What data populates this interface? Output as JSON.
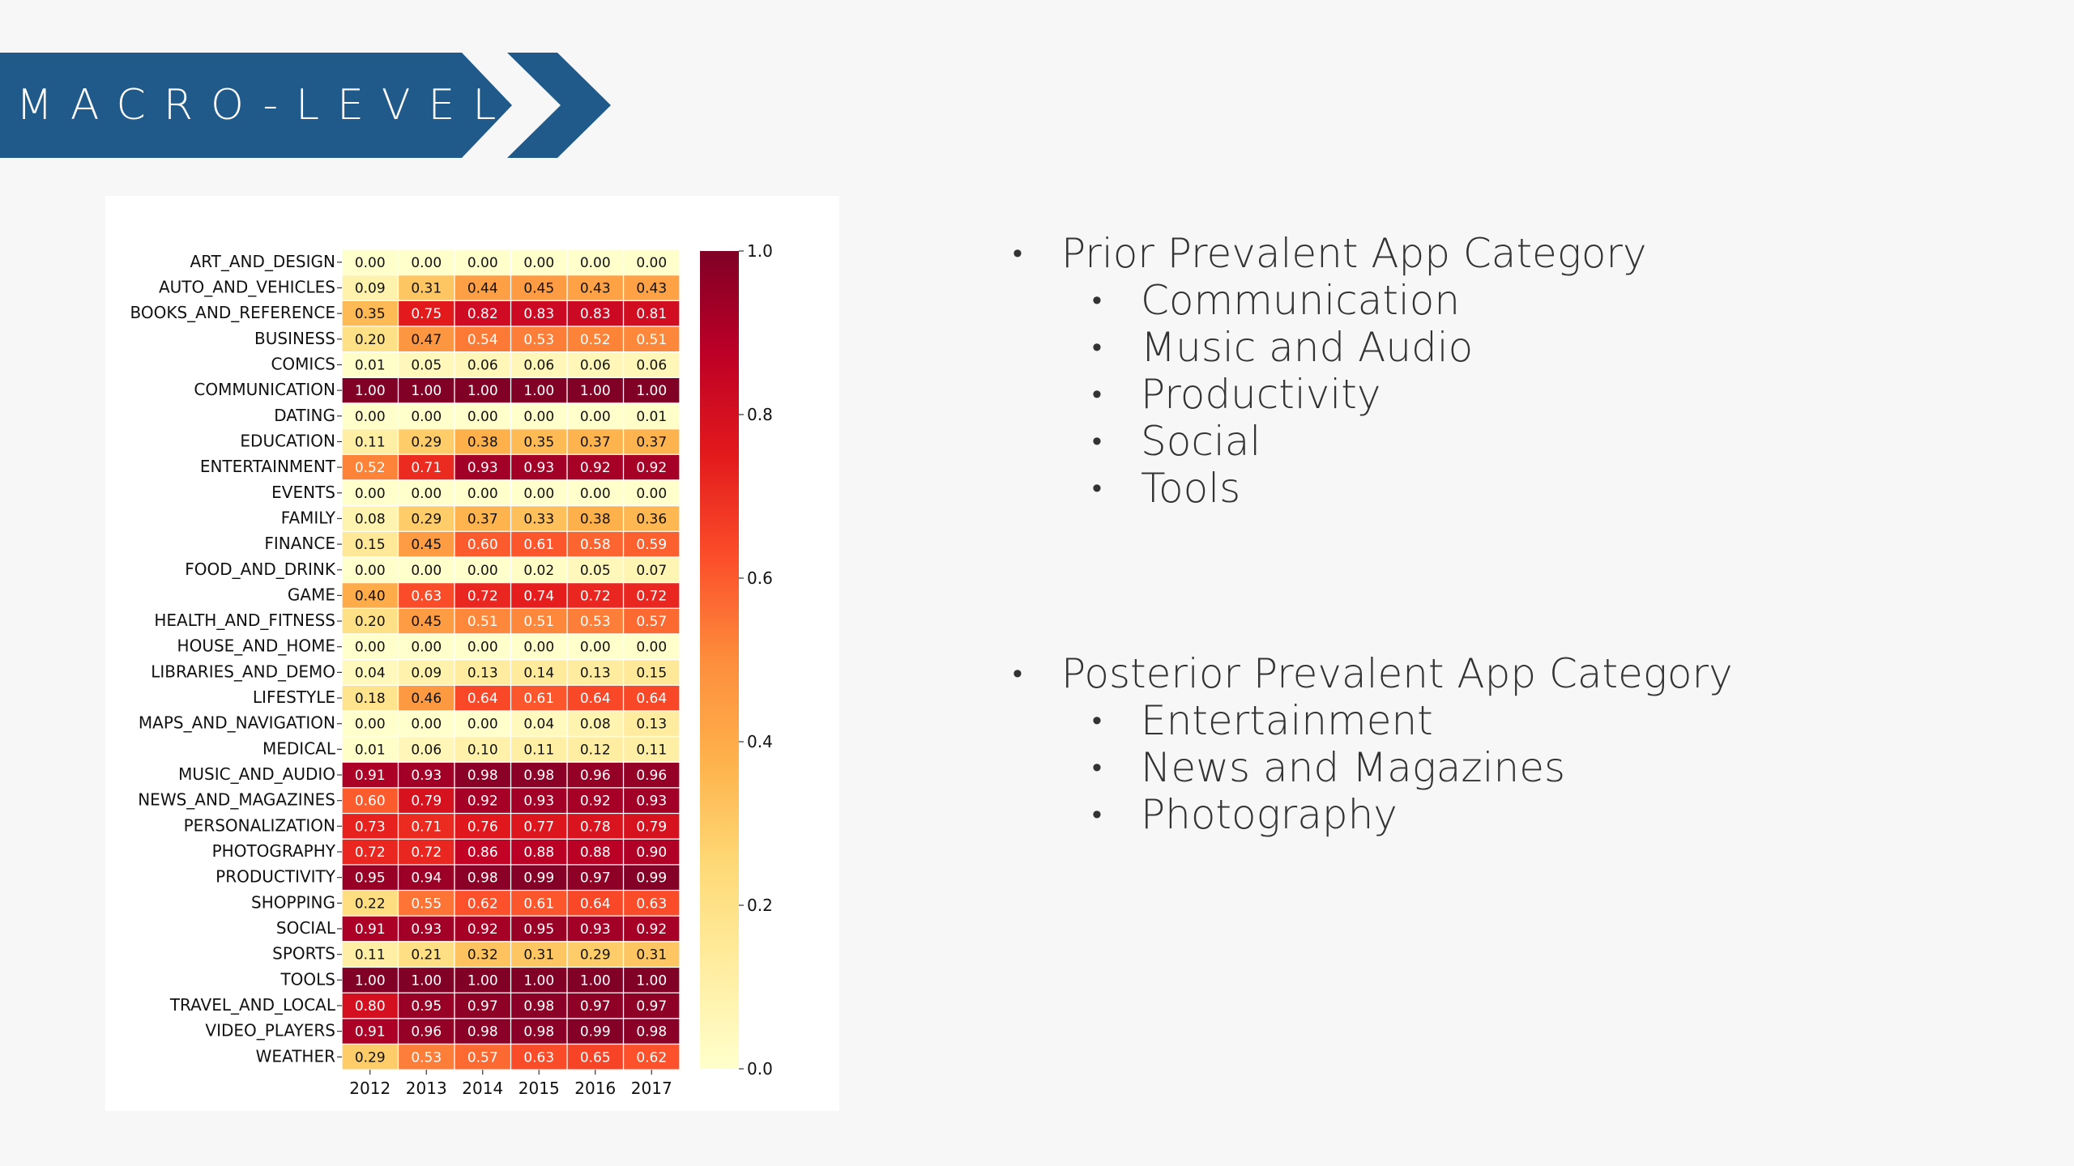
{
  "slide": {
    "title": "MACRO-LEVEL",
    "banner_color": "#1f5a8a"
  },
  "prior": {
    "heading": "Prior Prevalent App Category",
    "items": [
      "Communication",
      "Music and Audio",
      "Productivity",
      "Social",
      "Tools"
    ]
  },
  "posterior": {
    "heading": "Posterior Prevalent App Category",
    "items": [
      "Entertainment",
      "News and Magazines",
      "Photography"
    ]
  },
  "chart_data": {
    "type": "heatmap",
    "colormap": "YlOrRd",
    "x": [
      "2012",
      "2013",
      "2014",
      "2015",
      "2016",
      "2017"
    ],
    "y": [
      "ART_AND_DESIGN",
      "AUTO_AND_VEHICLES",
      "BOOKS_AND_REFERENCE",
      "BUSINESS",
      "COMICS",
      "COMMUNICATION",
      "DATING",
      "EDUCATION",
      "ENTERTAINMENT",
      "EVENTS",
      "FAMILY",
      "FINANCE",
      "FOOD_AND_DRINK",
      "GAME",
      "HEALTH_AND_FITNESS",
      "HOUSE_AND_HOME",
      "LIBRARIES_AND_DEMO",
      "LIFESTYLE",
      "MAPS_AND_NAVIGATION",
      "MEDICAL",
      "MUSIC_AND_AUDIO",
      "NEWS_AND_MAGAZINES",
      "PERSONALIZATION",
      "PHOTOGRAPHY",
      "PRODUCTIVITY",
      "SHOPPING",
      "SOCIAL",
      "SPORTS",
      "TOOLS",
      "TRAVEL_AND_LOCAL",
      "VIDEO_PLAYERS",
      "WEATHER"
    ],
    "values": [
      [
        0.0,
        0.0,
        0.0,
        0.0,
        0.0,
        0.0
      ],
      [
        0.09,
        0.31,
        0.44,
        0.45,
        0.43,
        0.43
      ],
      [
        0.35,
        0.75,
        0.82,
        0.83,
        0.83,
        0.81
      ],
      [
        0.2,
        0.47,
        0.54,
        0.53,
        0.52,
        0.51
      ],
      [
        0.01,
        0.05,
        0.06,
        0.06,
        0.06,
        0.06
      ],
      [
        1.0,
        1.0,
        1.0,
        1.0,
        1.0,
        1.0
      ],
      [
        0.0,
        0.0,
        0.0,
        0.0,
        0.0,
        0.01
      ],
      [
        0.11,
        0.29,
        0.38,
        0.35,
        0.37,
        0.37
      ],
      [
        0.52,
        0.71,
        0.93,
        0.93,
        0.92,
        0.92
      ],
      [
        0.0,
        0.0,
        0.0,
        0.0,
        0.0,
        0.0
      ],
      [
        0.08,
        0.29,
        0.37,
        0.33,
        0.38,
        0.36
      ],
      [
        0.15,
        0.45,
        0.6,
        0.61,
        0.58,
        0.59
      ],
      [
        0.0,
        0.0,
        0.0,
        0.02,
        0.05,
        0.07
      ],
      [
        0.4,
        0.63,
        0.72,
        0.74,
        0.72,
        0.72
      ],
      [
        0.2,
        0.45,
        0.51,
        0.51,
        0.53,
        0.57
      ],
      [
        0.0,
        0.0,
        0.0,
        0.0,
        0.0,
        0.0
      ],
      [
        0.04,
        0.09,
        0.13,
        0.14,
        0.13,
        0.15
      ],
      [
        0.18,
        0.46,
        0.64,
        0.61,
        0.64,
        0.64
      ],
      [
        0.0,
        0.0,
        0.0,
        0.04,
        0.08,
        0.13
      ],
      [
        0.01,
        0.06,
        0.1,
        0.11,
        0.12,
        0.11
      ],
      [
        0.91,
        0.93,
        0.98,
        0.98,
        0.96,
        0.96
      ],
      [
        0.6,
        0.79,
        0.92,
        0.93,
        0.92,
        0.93
      ],
      [
        0.73,
        0.71,
        0.76,
        0.77,
        0.78,
        0.79
      ],
      [
        0.72,
        0.72,
        0.86,
        0.88,
        0.88,
        0.9
      ],
      [
        0.95,
        0.94,
        0.98,
        0.99,
        0.97,
        0.99
      ],
      [
        0.22,
        0.55,
        0.62,
        0.61,
        0.64,
        0.63
      ],
      [
        0.91,
        0.93,
        0.92,
        0.95,
        0.93,
        0.92
      ],
      [
        0.11,
        0.21,
        0.32,
        0.31,
        0.29,
        0.31
      ],
      [
        1.0,
        1.0,
        1.0,
        1.0,
        1.0,
        1.0
      ],
      [
        0.8,
        0.95,
        0.97,
        0.98,
        0.97,
        0.97
      ],
      [
        0.91,
        0.96,
        0.98,
        0.98,
        0.99,
        0.98
      ],
      [
        0.29,
        0.53,
        0.57,
        0.63,
        0.65,
        0.62
      ]
    ],
    "colorbar": {
      "range": [
        0.0,
        1.0
      ],
      "ticks": [
        "0.0",
        "0.2",
        "0.4",
        "0.6",
        "0.8",
        "1.0"
      ]
    }
  }
}
